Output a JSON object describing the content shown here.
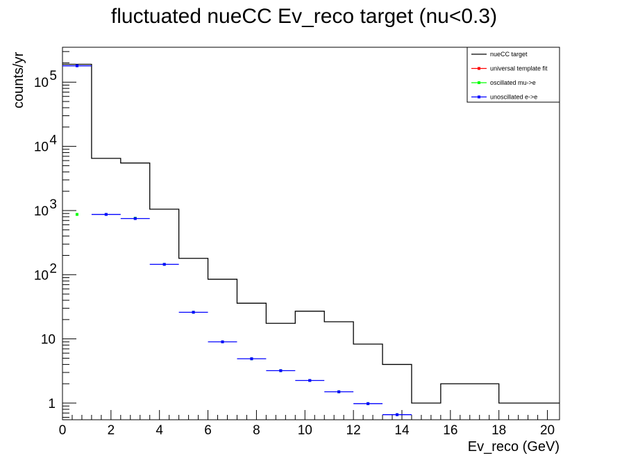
{
  "chart_data": {
    "type": "histogram",
    "title": "fluctuated nueCC Ev_reco target (nu<0.3)",
    "xlabel": "Ev_reco (GeV)",
    "ylabel": "counts/yr",
    "xlim": [
      0,
      20.5
    ],
    "ylim": [
      0.55,
      350000
    ],
    "yscale": "log",
    "bin_edges": [
      0,
      1.2,
      2.4,
      3.6,
      4.8,
      6.0,
      7.2,
      8.4,
      9.6,
      10.8,
      12.0,
      13.2,
      14.4,
      15.6,
      18.0,
      20.5
    ],
    "x_ticks": [
      0,
      2,
      4,
      6,
      8,
      10,
      12,
      14,
      16,
      18,
      20
    ],
    "x_tick_labels": [
      "0",
      "2",
      "4",
      "6",
      "8",
      "10",
      "12",
      "14",
      "16",
      "18",
      "20"
    ],
    "y_tick_labels": [
      {
        "value": 1,
        "base": "1",
        "exp": ""
      },
      {
        "value": 10,
        "base": "10",
        "exp": ""
      },
      {
        "value": 100,
        "base": "10",
        "exp": "2"
      },
      {
        "value": 1000,
        "base": "10",
        "exp": "3"
      },
      {
        "value": 10000,
        "base": "10",
        "exp": "4"
      },
      {
        "value": 100000,
        "base": "10",
        "exp": "5"
      }
    ],
    "grid": false,
    "legend_position": "top-right",
    "series": [
      {
        "name": "nueCC target",
        "style": "step",
        "color": "#000000",
        "values": [
          190000,
          6500,
          5500,
          1050,
          180,
          85,
          36,
          17.5,
          27,
          18.5,
          8.3,
          4.0,
          1.0,
          2.0,
          1.0
        ]
      },
      {
        "name": "universal template fit",
        "style": "points",
        "color": "#ff0000",
        "values": []
      },
      {
        "name": "oscillated mu->e",
        "style": "points",
        "color": "#00ff00",
        "x": [
          0.6,
          1.8,
          3.0,
          4.2,
          5.4,
          6.6,
          7.8,
          9.0,
          10.2,
          11.4,
          12.6,
          13.8
        ],
        "values": [
          870,
          870,
          760,
          145,
          26,
          9.0,
          4.9,
          3.2,
          2.25,
          1.5,
          0.98,
          0.66
        ]
      },
      {
        "name": "unoscillated e->e",
        "style": "hbars",
        "color": "#0000ff",
        "x": [
          0.6,
          1.8,
          3.0,
          4.2,
          5.4,
          6.6,
          7.8,
          9.0,
          10.2,
          11.4,
          12.6,
          13.8
        ],
        "half_width": 0.6,
        "values": [
          180000,
          870,
          750,
          145,
          26,
          9.0,
          4.9,
          3.2,
          2.25,
          1.5,
          0.98,
          0.66
        ]
      }
    ]
  }
}
